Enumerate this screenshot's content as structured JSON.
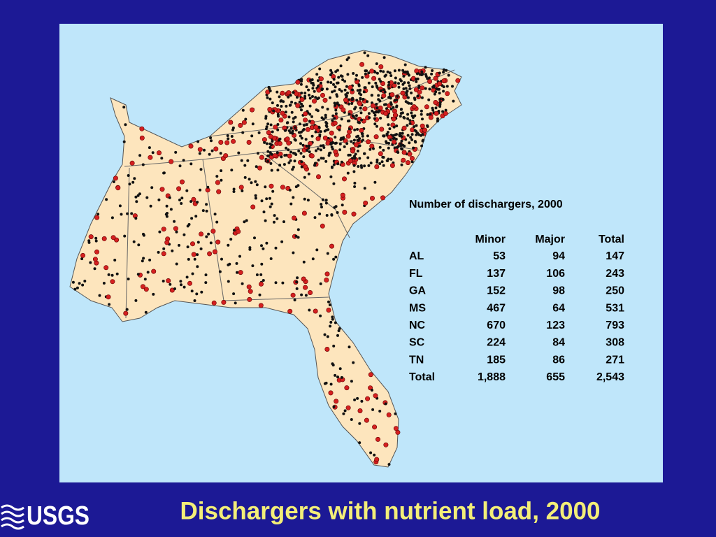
{
  "slide": {
    "title": "Dischargers with nutrient load, 2000",
    "logo": "USGS",
    "table": {
      "title": "Number of dischargers, 2000",
      "header": [
        "Minor",
        "Major",
        "Total"
      ],
      "rows": [
        [
          "AL",
          "53",
          "94",
          "147"
        ],
        [
          "FL",
          "137",
          "106",
          "243"
        ],
        [
          "GA",
          "152",
          "98",
          "250"
        ],
        [
          "MS",
          "467",
          "64",
          "531"
        ],
        [
          "NC",
          "670",
          "123",
          "793"
        ],
        [
          "SC",
          "224",
          "84",
          "308"
        ],
        [
          "TN",
          "185",
          "86",
          "271"
        ],
        [
          "Total",
          "1,888",
          "655",
          "2,543"
        ]
      ]
    }
  }
}
